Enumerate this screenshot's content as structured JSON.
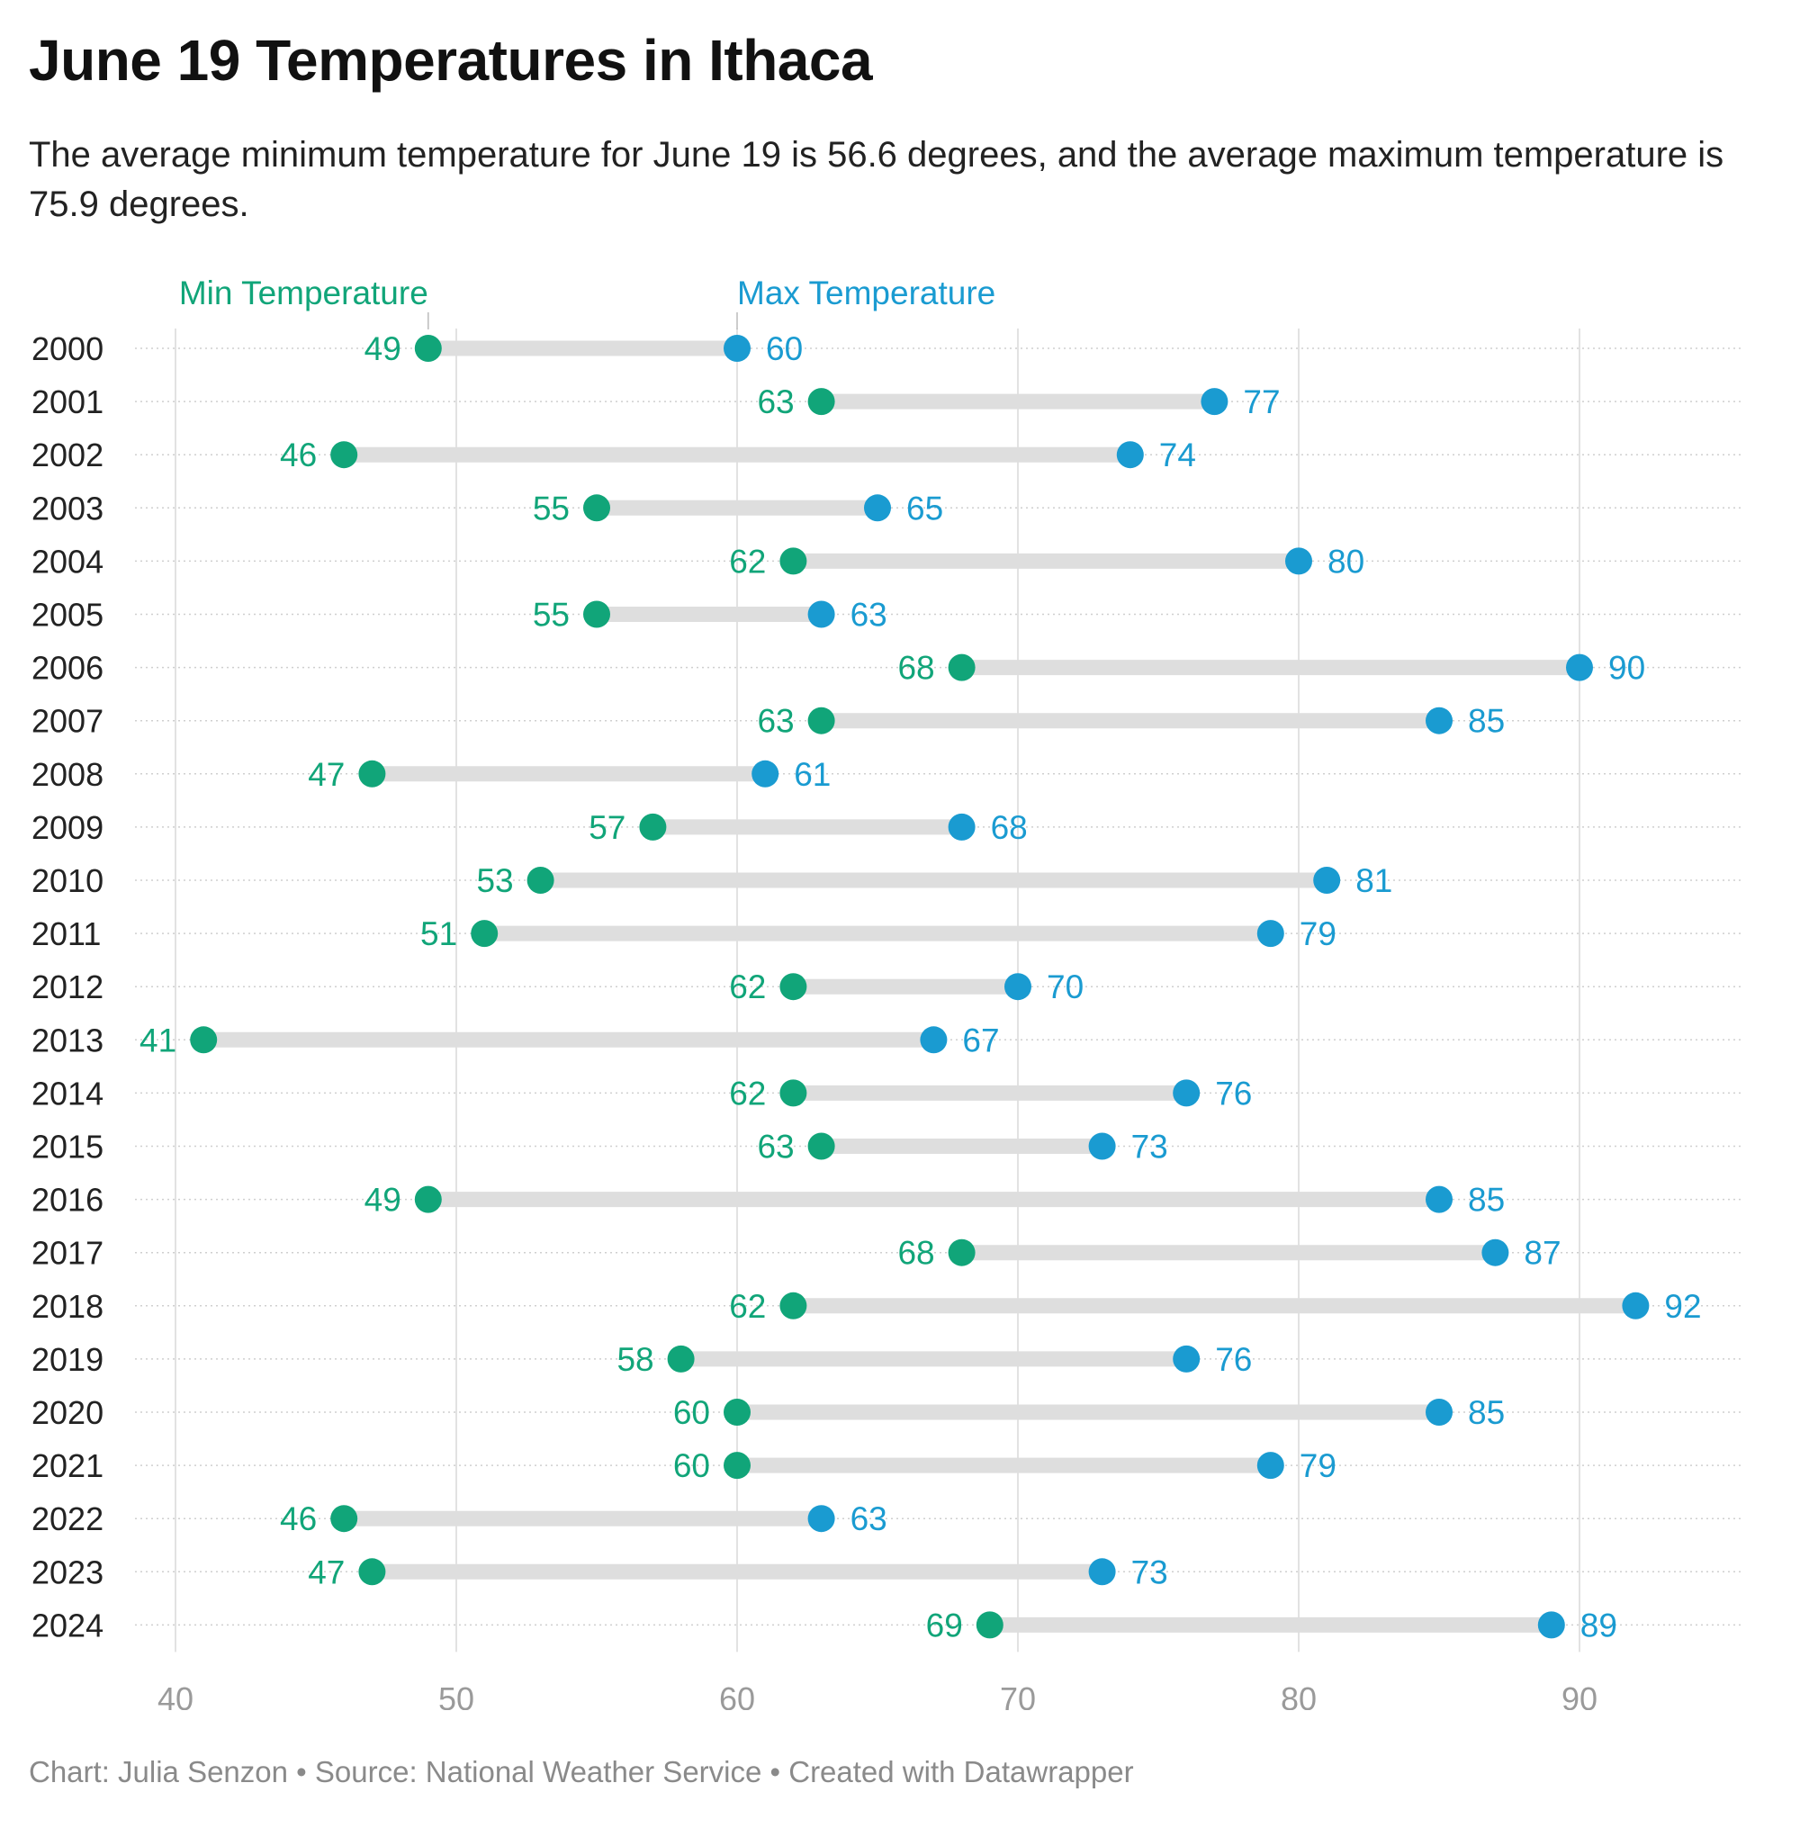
{
  "chart_data": {
    "type": "dumbbell",
    "title": "June 19 Temperatures in Ithaca",
    "subtitle": "The average minimum temperature for June 19 is 56.6 degrees, and the average maximum temperature is 75.9 degrees.",
    "footer": "Chart: Julia Senzon • Source: National Weather Service • Created with Datawrapper",
    "xlim": [
      40,
      90
    ],
    "xticks": [
      "40",
      "50",
      "60",
      "70",
      "80",
      "90"
    ],
    "grid": true,
    "categories": [
      "2000",
      "2001",
      "2002",
      "2003",
      "2004",
      "2005",
      "2006",
      "2007",
      "2008",
      "2009",
      "2010",
      "2011",
      "2012",
      "2013",
      "2014",
      "2015",
      "2016",
      "2017",
      "2018",
      "2019",
      "2020",
      "2021",
      "2022",
      "2023",
      "2024"
    ],
    "series": [
      {
        "name": "Min Temperature",
        "color": "#11a579",
        "values": [
          49,
          63,
          46,
          55,
          62,
          55,
          68,
          63,
          47,
          57,
          53,
          51,
          62,
          41,
          62,
          63,
          49,
          68,
          62,
          58,
          60,
          60,
          46,
          47,
          69
        ]
      },
      {
        "name": "Max Temperature",
        "color": "#1a9bd1",
        "values": [
          60,
          77,
          74,
          65,
          80,
          63,
          90,
          85,
          61,
          68,
          81,
          79,
          70,
          67,
          76,
          73,
          85,
          87,
          92,
          76,
          85,
          79,
          63,
          73,
          89
        ]
      }
    ]
  }
}
